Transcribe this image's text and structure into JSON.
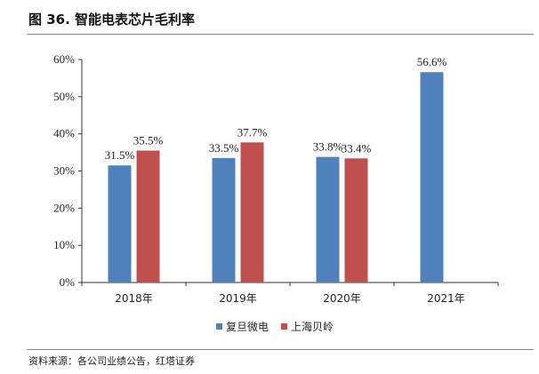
{
  "title": "图 36. 智能电表芯片毛利率",
  "source": "资料来源：各公司业绩公告，红塔证券",
  "chart_data": {
    "type": "bar",
    "categories": [
      "2018年",
      "2019年",
      "2020年",
      "2021年"
    ],
    "series": [
      {
        "name": "复旦微电",
        "color": "#4F81BD",
        "values": [
          31.5,
          33.5,
          33.8,
          56.6
        ]
      },
      {
        "name": "上海贝岭",
        "color": "#C0504D",
        "values": [
          35.5,
          37.7,
          33.4,
          null
        ]
      }
    ],
    "ylim": [
      0,
      60
    ],
    "yticks": [
      0,
      10,
      20,
      30,
      40,
      50,
      60
    ],
    "yunit": "%",
    "grid": false,
    "legend": "bottom"
  }
}
